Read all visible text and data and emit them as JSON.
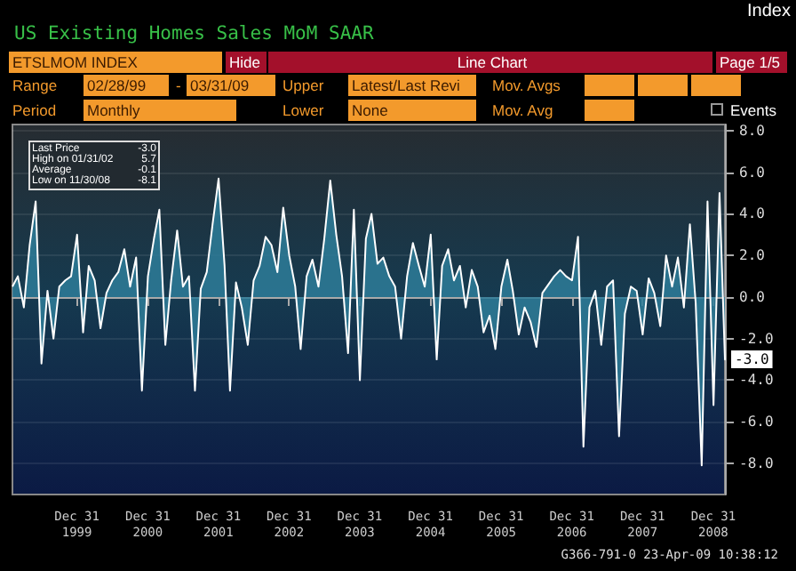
{
  "chart_data": {
    "type": "area",
    "title": "US Existing Homes Sales MoM SAAR",
    "annotations": [
      "Index",
      "ETSLMOM INDEX",
      "Hide",
      "Line Chart",
      "Page 1/5",
      "Range",
      "02/28/99",
      "-",
      "03/31/09",
      "Upper",
      "Latest/Last Revi",
      "Mov. Avgs",
      "Period",
      "Monthly",
      "Lower",
      "None",
      "Mov. Avg",
      "Events",
      "Last Price",
      "-3.0",
      "High on 01/31/02",
      "5.7",
      "Average",
      "-0.1",
      "Low on 11/30/08",
      "-8.1",
      {
        "text": "-3.0",
        "x": "2009-03",
        "y": -3.0
      },
      "G366-791-0 23-Apr-09 10:38:12"
    ],
    "x": [
      "1999-02",
      "1999-03",
      "1999-04",
      "1999-05",
      "1999-06",
      "1999-07",
      "1999-08",
      "1999-09",
      "1999-10",
      "1999-11",
      "1999-12",
      "2000-01",
      "2000-02",
      "2000-03",
      "2000-04",
      "2000-05",
      "2000-06",
      "2000-07",
      "2000-08",
      "2000-09",
      "2000-10",
      "2000-11",
      "2000-12",
      "2001-01",
      "2001-02",
      "2001-03",
      "2001-04",
      "2001-05",
      "2001-06",
      "2001-07",
      "2001-08",
      "2001-09",
      "2001-10",
      "2001-11",
      "2001-12",
      "2002-01",
      "2002-02",
      "2002-03",
      "2002-04",
      "2002-05",
      "2002-06",
      "2002-07",
      "2002-08",
      "2002-09",
      "2002-10",
      "2002-11",
      "2002-12",
      "2003-01",
      "2003-02",
      "2003-03",
      "2003-04",
      "2003-05",
      "2003-06",
      "2003-07",
      "2003-08",
      "2003-09",
      "2003-10",
      "2003-11",
      "2003-12",
      "2004-01",
      "2004-02",
      "2004-03",
      "2004-04",
      "2004-05",
      "2004-06",
      "2004-07",
      "2004-08",
      "2004-09",
      "2004-10",
      "2004-11",
      "2004-12",
      "2005-01",
      "2005-02",
      "2005-03",
      "2005-04",
      "2005-05",
      "2005-06",
      "2005-07",
      "2005-08",
      "2005-09",
      "2005-10",
      "2005-11",
      "2005-12",
      "2006-01",
      "2006-02",
      "2006-03",
      "2006-04",
      "2006-05",
      "2006-06",
      "2006-07",
      "2006-08",
      "2006-09",
      "2006-10",
      "2006-11",
      "2006-12",
      "2007-01",
      "2007-02",
      "2007-03",
      "2007-04",
      "2007-05",
      "2007-06",
      "2007-07",
      "2007-08",
      "2007-09",
      "2007-10",
      "2007-11",
      "2007-12",
      "2008-01",
      "2008-02",
      "2008-03",
      "2008-04",
      "2008-05",
      "2008-06",
      "2008-07",
      "2008-08",
      "2008-09",
      "2008-10",
      "2008-11",
      "2008-12",
      "2009-01",
      "2009-02",
      "2009-03"
    ],
    "values": [
      0.5,
      1.0,
      -0.5,
      2.5,
      4.6,
      -3.2,
      0.3,
      -2.0,
      0.5,
      0.8,
      1.0,
      3.0,
      -1.7,
      1.5,
      0.8,
      -1.5,
      0.2,
      0.8,
      1.2,
      2.3,
      0.5,
      1.9,
      -4.5,
      1.0,
      2.8,
      4.2,
      -2.3,
      0.8,
      3.2,
      0.5,
      1.0,
      -4.5,
      0.4,
      1.2,
      3.5,
      5.7,
      1.5,
      -4.5,
      0.7,
      -0.5,
      -2.3,
      0.8,
      1.5,
      2.9,
      2.5,
      1.2,
      4.3,
      2.0,
      0.5,
      -2.5,
      1.0,
      1.8,
      0.5,
      2.8,
      5.6,
      3.0,
      1.0,
      -2.7,
      4.2,
      -4.0,
      2.8,
      4.0,
      1.6,
      1.9,
      1.0,
      0.5,
      -2.0,
      1.0,
      2.6,
      1.5,
      0.5,
      3.0,
      -3.0,
      1.5,
      2.3,
      0.8,
      1.5,
      -0.5,
      1.3,
      0.5,
      -1.7,
      -0.9,
      -2.5,
      0.5,
      1.8,
      0.3,
      -1.8,
      -0.5,
      -1.2,
      -2.4,
      0.2,
      0.6,
      1.0,
      1.3,
      1.0,
      0.8,
      2.9,
      -7.2,
      -0.5,
      0.3,
      -2.3,
      0.5,
      0.8,
      -6.7,
      -0.8,
      0.5,
      0.3,
      -1.8,
      0.9,
      0.2,
      -1.4,
      2.0,
      0.5,
      1.9,
      -0.5,
      3.5,
      -0.3,
      -8.1,
      4.6,
      -5.2,
      5.0,
      -3.0
    ],
    "color": "#2e7d99",
    "xlim": [
      "1999-02",
      "2009-03"
    ],
    "xticks": [
      {
        "value": "1999-12-31",
        "label": "Dec 31\n1999"
      },
      {
        "value": "2000-12-31",
        "label": "Dec 31\n2000"
      },
      {
        "value": "2001-12-31",
        "label": "Dec 31\n2001"
      },
      {
        "value": "2002-12-31",
        "label": "Dec 31\n2002"
      },
      {
        "value": "2003-12-31",
        "label": "Dec 31\n2003"
      },
      {
        "value": "2004-12-31",
        "label": "Dec 31\n2004"
      },
      {
        "value": "2005-12-31",
        "label": "Dec 31\n2005"
      },
      {
        "value": "2006-12-31",
        "label": "Dec 31\n2006"
      },
      {
        "value": "2007-12-31",
        "label": "Dec 31\n2007"
      },
      {
        "value": "2008-12-31",
        "label": "Dec 31\n2008"
      }
    ],
    "ylim": [
      -9.5,
      8.3
    ],
    "yticks": [
      {
        "value": -8,
        "label": "-8.0"
      },
      {
        "value": -6,
        "label": "-6.0"
      },
      {
        "value": -4,
        "label": "-4.0"
      },
      {
        "value": -2,
        "label": "-2.0"
      },
      {
        "value": 0,
        "label": "0.0"
      },
      {
        "value": 2,
        "label": "2.0"
      },
      {
        "value": 4,
        "label": "4.0"
      },
      {
        "value": 6,
        "label": "6.0"
      },
      {
        "value": 8,
        "label": "8.0"
      }
    ],
    "grid": "y"
  }
}
